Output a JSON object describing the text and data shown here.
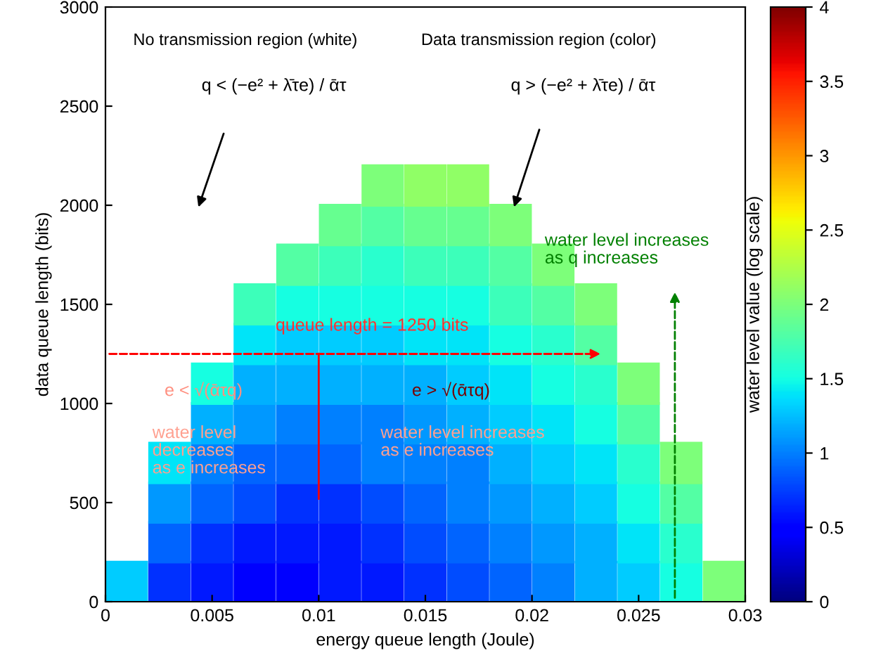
{
  "chart_data": {
    "type": "scatter",
    "marker": "square",
    "xlabel": "energy queue length (Joule)",
    "ylabel": "data queue length (bits)",
    "clabel": "water level value (log scale)",
    "x": [
      0.001,
      0.003,
      0.003,
      0.003,
      0.003,
      0.005,
      0.005,
      0.005,
      0.005,
      0.005,
      0.005,
      0.007,
      0.007,
      0.007,
      0.007,
      0.007,
      0.007,
      0.007,
      0.007,
      0.009,
      0.009,
      0.009,
      0.009,
      0.009,
      0.009,
      0.009,
      0.009,
      0.009,
      0.011,
      0.011,
      0.011,
      0.011,
      0.011,
      0.011,
      0.011,
      0.011,
      0.011,
      0.011,
      0.013,
      0.013,
      0.013,
      0.013,
      0.013,
      0.013,
      0.013,
      0.013,
      0.013,
      0.013,
      0.013,
      0.015,
      0.015,
      0.015,
      0.015,
      0.015,
      0.015,
      0.015,
      0.015,
      0.015,
      0.015,
      0.015,
      0.017,
      0.017,
      0.017,
      0.017,
      0.017,
      0.017,
      0.017,
      0.017,
      0.017,
      0.017,
      0.017,
      0.019,
      0.019,
      0.019,
      0.019,
      0.019,
      0.019,
      0.019,
      0.019,
      0.019,
      0.019,
      0.021,
      0.021,
      0.021,
      0.021,
      0.021,
      0.021,
      0.021,
      0.021,
      0.021,
      0.023,
      0.023,
      0.023,
      0.023,
      0.023,
      0.023,
      0.023,
      0.023,
      0.025,
      0.025,
      0.025,
      0.025,
      0.025,
      0.025,
      0.027,
      0.027,
      0.027,
      0.027,
      0.029
    ],
    "values": [
      100,
      100,
      300,
      500,
      700,
      100,
      300,
      500,
      700,
      900,
      1100,
      100,
      300,
      500,
      700,
      900,
      1100,
      1300,
      1500,
      100,
      300,
      500,
      700,
      900,
      1100,
      1300,
      1500,
      1700,
      100,
      300,
      500,
      700,
      900,
      1100,
      1300,
      1500,
      1700,
      1900,
      100,
      300,
      500,
      700,
      900,
      1100,
      1300,
      1500,
      1700,
      1900,
      2100,
      100,
      300,
      500,
      700,
      900,
      1100,
      1300,
      1500,
      1700,
      1900,
      2100,
      100,
      300,
      500,
      700,
      900,
      1100,
      1300,
      1500,
      1700,
      1900,
      2100,
      100,
      300,
      500,
      700,
      900,
      1100,
      1300,
      1500,
      1700,
      1900,
      100,
      300,
      500,
      700,
      900,
      1100,
      1300,
      1500,
      1700,
      100,
      300,
      500,
      700,
      900,
      1100,
      1300,
      1500,
      100,
      300,
      500,
      700,
      900,
      1100,
      100,
      300,
      500,
      700,
      100
    ],
    "cvalues": [
      1.3,
      0.7,
      0.9,
      1.1,
      1.4,
      0.6,
      0.7,
      0.9,
      1.0,
      1.2,
      1.5,
      0.5,
      0.6,
      0.8,
      0.9,
      1.1,
      1.2,
      1.4,
      1.7,
      0.5,
      0.6,
      0.7,
      0.9,
      1.0,
      1.2,
      1.3,
      1.5,
      1.8,
      0.6,
      0.6,
      0.7,
      0.9,
      1.0,
      1.2,
      1.3,
      1.5,
      1.7,
      1.9,
      0.6,
      0.7,
      0.8,
      1.0,
      1.0,
      1.2,
      1.3,
      1.5,
      1.6,
      1.8,
      2.0,
      0.7,
      0.8,
      0.9,
      1.0,
      1.1,
      1.2,
      1.4,
      1.5,
      1.7,
      1.9,
      2.1,
      0.8,
      0.9,
      1.0,
      1.0,
      1.2,
      1.3,
      1.4,
      1.5,
      1.7,
      1.9,
      2.1,
      0.9,
      1.0,
      1.1,
      1.2,
      1.3,
      1.4,
      1.5,
      1.7,
      1.8,
      2.0,
      1.0,
      1.1,
      1.2,
      1.3,
      1.4,
      1.5,
      1.6,
      1.8,
      2.0,
      1.2,
      1.2,
      1.3,
      1.4,
      1.5,
      1.6,
      1.8,
      2.0,
      1.3,
      1.4,
      1.5,
      1.6,
      1.8,
      2.0,
      1.5,
      1.6,
      1.8,
      2.0,
      2.0
    ],
    "xlim": [
      0,
      0.03
    ],
    "xticks": [
      0,
      0.005,
      0.01,
      0.015,
      0.02,
      0.025,
      0.03
    ],
    "ylim": [
      0,
      3000
    ],
    "yticks": [
      0,
      500,
      1000,
      1500,
      2000,
      2500,
      3000
    ],
    "ref_lines": [
      {
        "axis": "x",
        "value": 0.01,
        "color": "#ff0000"
      }
    ],
    "clim": [
      0,
      4
    ],
    "cticks": [
      0,
      0.5,
      1,
      1.5,
      2,
      2.5,
      3,
      3.5,
      4
    ],
    "annotations": [
      "No transmission region (white)",
      "Data transmission region (color)",
      "q < (−e² + λ̄τe) / ᾱτ",
      "q > (−e² + λ̄τe) / ᾱτ",
      "water level increases\nas q increases",
      "queue length = 1250 bits",
      "e < √(ᾱτq)",
      "e > √(ᾱτq)",
      "water level\ndecreases\nas e increases",
      "water level increases\nas e increases"
    ]
  }
}
